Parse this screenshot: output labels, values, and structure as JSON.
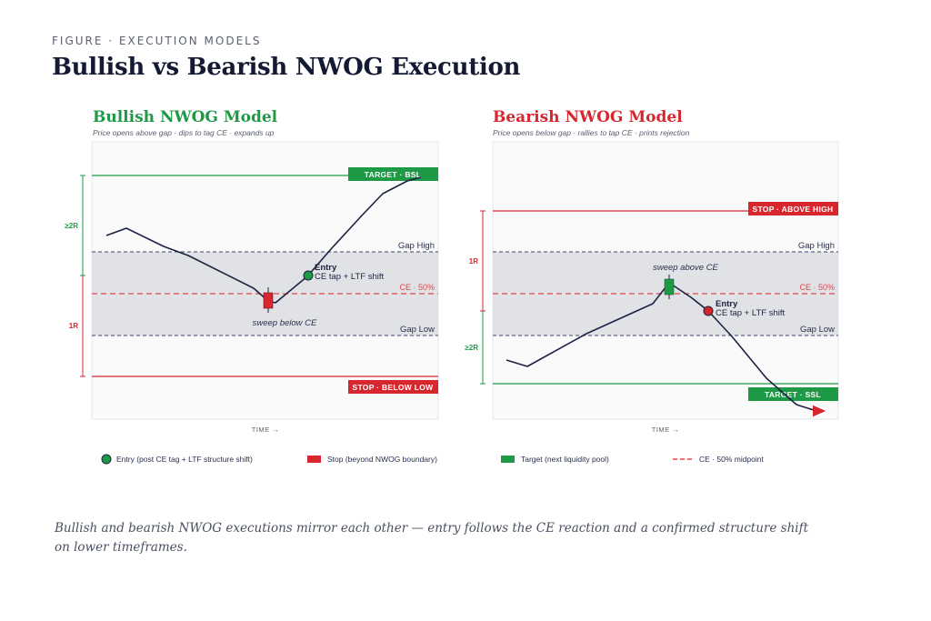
{
  "header": {
    "eyebrow": "FIGURE · EXECUTION MODELS",
    "title": "Bullish vs Bearish NWOG Execution"
  },
  "colors": {
    "bull": "#1e9a47",
    "bear": "#d8262e",
    "price": "#1b2340",
    "gap": "#e1e2e6",
    "ce": "#e0474c"
  },
  "bullish": {
    "title": "Bullish NWOG Model",
    "subtitle": "Price opens above gap · dips to tag CE · expands up",
    "target_label": "TARGET · BSL",
    "stop_label": "STOP · BELOW LOW",
    "gap_high_label": "Gap High",
    "ce_label": "CE · 50%",
    "gap_low_label": "Gap Low",
    "entry_title": "Entry",
    "entry_detail": "CE tap + LTF shift",
    "sweep_label": "sweep below CE",
    "reward_label": "≥2R",
    "risk_label": "1R",
    "time_label": "TIME →"
  },
  "bearish": {
    "title": "Bearish NWOG Model",
    "subtitle": "Price opens below gap · rallies to tap CE · prints rejection",
    "target_label": "TARGET · SSL",
    "stop_label": "STOP · ABOVE HIGH",
    "gap_high_label": "Gap High",
    "ce_label": "CE · 50%",
    "gap_low_label": "Gap Low",
    "entry_title": "Entry",
    "entry_detail": "CE tap + LTF shift",
    "sweep_label": "sweep above CE",
    "reward_label": "≥2R",
    "risk_label": "1R",
    "time_label": "TIME →"
  },
  "legend": {
    "entry": "Entry (post CE tag + LTF structure shift)",
    "stop": "Stop (beyond NWOG boundary)",
    "target": "Target (next liquidity pool)",
    "ce": "CE · 50% midpoint"
  },
  "caption": "Bullish and bearish NWOG executions mirror each other — entry follows the CE reaction and a confirmed structure shift on lower timeframes."
}
